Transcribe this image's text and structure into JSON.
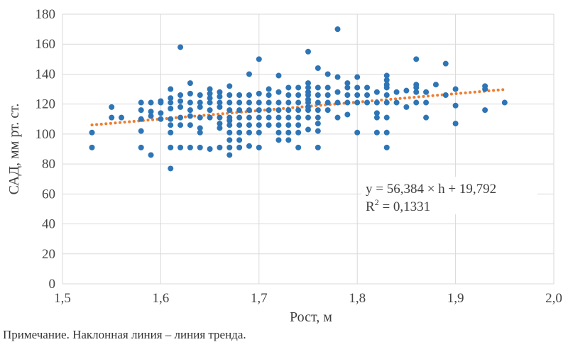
{
  "chart_data": {
    "type": "scatter",
    "xlabel": "Рост, м",
    "ylabel": "САД, мм рт. ст.",
    "xlim": [
      1.5,
      2.0
    ],
    "ylim": [
      0,
      180
    ],
    "x_ticks": [
      "1,5",
      "1,6",
      "1,7",
      "1,8",
      "1,9",
      "2,0"
    ],
    "y_ticks": [
      "0",
      "20",
      "40",
      "60",
      "80",
      "100",
      "120",
      "140",
      "160",
      "180"
    ],
    "grid": true,
    "point_color": "#2e75b6",
    "trend_color": "#ed7d31",
    "trendline": {
      "slope": 56.384,
      "intercept": 19.792,
      "equation": "y = 56,384 × h + 19,792",
      "r2_label": "R",
      "r2_sup": "2",
      "r2_value": " = 0,1331"
    },
    "points": [
      [
        1.53,
        101
      ],
      [
        1.53,
        91
      ],
      [
        1.55,
        118
      ],
      [
        1.55,
        111
      ],
      [
        1.56,
        111
      ],
      [
        1.58,
        121
      ],
      [
        1.58,
        116
      ],
      [
        1.58,
        110
      ],
      [
        1.58,
        102
      ],
      [
        1.58,
        91
      ],
      [
        1.59,
        121
      ],
      [
        1.59,
        115
      ],
      [
        1.59,
        112
      ],
      [
        1.59,
        86
      ],
      [
        1.6,
        122
      ],
      [
        1.6,
        121
      ],
      [
        1.6,
        114
      ],
      [
        1.6,
        110
      ],
      [
        1.61,
        130
      ],
      [
        1.61,
        124
      ],
      [
        1.61,
        121
      ],
      [
        1.61,
        117
      ],
      [
        1.61,
        110
      ],
      [
        1.61,
        106
      ],
      [
        1.61,
        101
      ],
      [
        1.61,
        91
      ],
      [
        1.61,
        77
      ],
      [
        1.62,
        158
      ],
      [
        1.62,
        126
      ],
      [
        1.62,
        122
      ],
      [
        1.62,
        118
      ],
      [
        1.62,
        111
      ],
      [
        1.62,
        106
      ],
      [
        1.62,
        91
      ],
      [
        1.63,
        134
      ],
      [
        1.63,
        127
      ],
      [
        1.63,
        121
      ],
      [
        1.63,
        116
      ],
      [
        1.63,
        112
      ],
      [
        1.63,
        106
      ],
      [
        1.63,
        91
      ],
      [
        1.64,
        126
      ],
      [
        1.64,
        121
      ],
      [
        1.64,
        118
      ],
      [
        1.64,
        111
      ],
      [
        1.64,
        104
      ],
      [
        1.64,
        101
      ],
      [
        1.64,
        91
      ],
      [
        1.65,
        130
      ],
      [
        1.65,
        127
      ],
      [
        1.65,
        124
      ],
      [
        1.65,
        121
      ],
      [
        1.65,
        116
      ],
      [
        1.65,
        111
      ],
      [
        1.65,
        90
      ],
      [
        1.66,
        128
      ],
      [
        1.66,
        125
      ],
      [
        1.66,
        121
      ],
      [
        1.66,
        118
      ],
      [
        1.66,
        111
      ],
      [
        1.66,
        107
      ],
      [
        1.66,
        104
      ],
      [
        1.66,
        91
      ],
      [
        1.67,
        132
      ],
      [
        1.67,
        126
      ],
      [
        1.67,
        121
      ],
      [
        1.67,
        116
      ],
      [
        1.67,
        111
      ],
      [
        1.67,
        109
      ],
      [
        1.67,
        106
      ],
      [
        1.67,
        101
      ],
      [
        1.67,
        96
      ],
      [
        1.67,
        91
      ],
      [
        1.67,
        86
      ],
      [
        1.68,
        126
      ],
      [
        1.68,
        121
      ],
      [
        1.68,
        116
      ],
      [
        1.68,
        111
      ],
      [
        1.68,
        106
      ],
      [
        1.68,
        101
      ],
      [
        1.68,
        96
      ],
      [
        1.68,
        91
      ],
      [
        1.69,
        140
      ],
      [
        1.69,
        126
      ],
      [
        1.69,
        121
      ],
      [
        1.69,
        116
      ],
      [
        1.69,
        111
      ],
      [
        1.69,
        106
      ],
      [
        1.69,
        101
      ],
      [
        1.69,
        92
      ],
      [
        1.7,
        150
      ],
      [
        1.7,
        127
      ],
      [
        1.7,
        121
      ],
      [
        1.7,
        116
      ],
      [
        1.7,
        111
      ],
      [
        1.7,
        106
      ],
      [
        1.7,
        101
      ],
      [
        1.7,
        91
      ],
      [
        1.71,
        130
      ],
      [
        1.71,
        126
      ],
      [
        1.71,
        121
      ],
      [
        1.71,
        116
      ],
      [
        1.71,
        111
      ],
      [
        1.71,
        106
      ],
      [
        1.72,
        139
      ],
      [
        1.72,
        128
      ],
      [
        1.72,
        121
      ],
      [
        1.72,
        116
      ],
      [
        1.72,
        111
      ],
      [
        1.72,
        106
      ],
      [
        1.72,
        101
      ],
      [
        1.72,
        96
      ],
      [
        1.73,
        131
      ],
      [
        1.73,
        126
      ],
      [
        1.73,
        121
      ],
      [
        1.73,
        116
      ],
      [
        1.73,
        111
      ],
      [
        1.73,
        106
      ],
      [
        1.73,
        101
      ],
      [
        1.73,
        96
      ],
      [
        1.74,
        131
      ],
      [
        1.74,
        126
      ],
      [
        1.74,
        121
      ],
      [
        1.74,
        116
      ],
      [
        1.74,
        111
      ],
      [
        1.74,
        106
      ],
      [
        1.74,
        101
      ],
      [
        1.74,
        91
      ],
      [
        1.75,
        155
      ],
      [
        1.75,
        134
      ],
      [
        1.75,
        131
      ],
      [
        1.75,
        128
      ],
      [
        1.75,
        126
      ],
      [
        1.75,
        123
      ],
      [
        1.75,
        121
      ],
      [
        1.75,
        118
      ],
      [
        1.75,
        116
      ],
      [
        1.75,
        111
      ],
      [
        1.75,
        103
      ],
      [
        1.76,
        144
      ],
      [
        1.76,
        131
      ],
      [
        1.76,
        126
      ],
      [
        1.76,
        121
      ],
      [
        1.76,
        116
      ],
      [
        1.76,
        111
      ],
      [
        1.76,
        107
      ],
      [
        1.76,
        102
      ],
      [
        1.76,
        91
      ],
      [
        1.77,
        140
      ],
      [
        1.77,
        131
      ],
      [
        1.77,
        126
      ],
      [
        1.77,
        121
      ],
      [
        1.77,
        116
      ],
      [
        1.78,
        170
      ],
      [
        1.78,
        138
      ],
      [
        1.78,
        128
      ],
      [
        1.78,
        121
      ],
      [
        1.78,
        111
      ],
      [
        1.79,
        134
      ],
      [
        1.79,
        131
      ],
      [
        1.79,
        126
      ],
      [
        1.79,
        121
      ],
      [
        1.79,
        113
      ],
      [
        1.8,
        138
      ],
      [
        1.8,
        131
      ],
      [
        1.8,
        126
      ],
      [
        1.8,
        121
      ],
      [
        1.8,
        101
      ],
      [
        1.81,
        131
      ],
      [
        1.81,
        126
      ],
      [
        1.81,
        121
      ],
      [
        1.82,
        128
      ],
      [
        1.82,
        121
      ],
      [
        1.82,
        114
      ],
      [
        1.82,
        111
      ],
      [
        1.82,
        101
      ],
      [
        1.83,
        139
      ],
      [
        1.83,
        136
      ],
      [
        1.83,
        133
      ],
      [
        1.83,
        131
      ],
      [
        1.83,
        126
      ],
      [
        1.83,
        121
      ],
      [
        1.83,
        111
      ],
      [
        1.83,
        101
      ],
      [
        1.83,
        91
      ],
      [
        1.84,
        128
      ],
      [
        1.84,
        121
      ],
      [
        1.85,
        129
      ],
      [
        1.85,
        118
      ],
      [
        1.86,
        150
      ],
      [
        1.86,
        133
      ],
      [
        1.86,
        131
      ],
      [
        1.86,
        128
      ],
      [
        1.86,
        121
      ],
      [
        1.87,
        128
      ],
      [
        1.87,
        121
      ],
      [
        1.87,
        111
      ],
      [
        1.88,
        133
      ],
      [
        1.89,
        147
      ],
      [
        1.89,
        126
      ],
      [
        1.9,
        130
      ],
      [
        1.9,
        119
      ],
      [
        1.9,
        107
      ],
      [
        1.93,
        132
      ],
      [
        1.93,
        130
      ],
      [
        1.93,
        116
      ],
      [
        1.95,
        121
      ]
    ]
  },
  "note": "Примечание. Наклонная линия – линия тренда."
}
